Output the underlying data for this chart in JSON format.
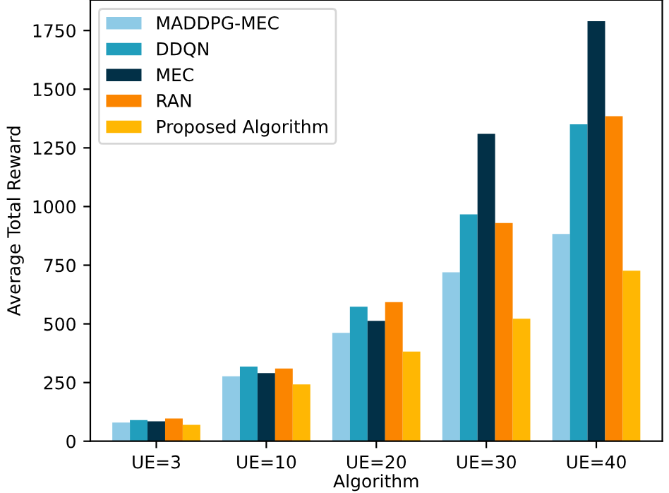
{
  "chart_data": {
    "type": "bar",
    "xlabel": "Algorithm",
    "ylabel": "Average Total Reward",
    "categories": [
      "UE=3",
      "UE=10",
      "UE=20",
      "UE=30",
      "UE=40"
    ],
    "series": [
      {
        "name": "MADDPG-MEC",
        "color": "#8ecae6",
        "values": [
          80,
          277,
          462,
          720,
          883
        ]
      },
      {
        "name": "DDQN",
        "color": "#219ebc",
        "values": [
          90,
          318,
          573,
          967,
          1350
        ]
      },
      {
        "name": "MEC",
        "color": "#023047",
        "values": [
          85,
          290,
          513,
          1310,
          1790
        ]
      },
      {
        "name": "RAN",
        "color": "#fb8500",
        "values": [
          97,
          310,
          593,
          930,
          1385
        ]
      },
      {
        "name": "Proposed Algorithm",
        "color": "#ffb703",
        "values": [
          70,
          242,
          382,
          522,
          727
        ]
      }
    ],
    "ylim": [
      0,
      1880
    ],
    "yticks": [
      0,
      250,
      500,
      750,
      1000,
      1250,
      1500,
      1750
    ],
    "legend": "top left"
  }
}
